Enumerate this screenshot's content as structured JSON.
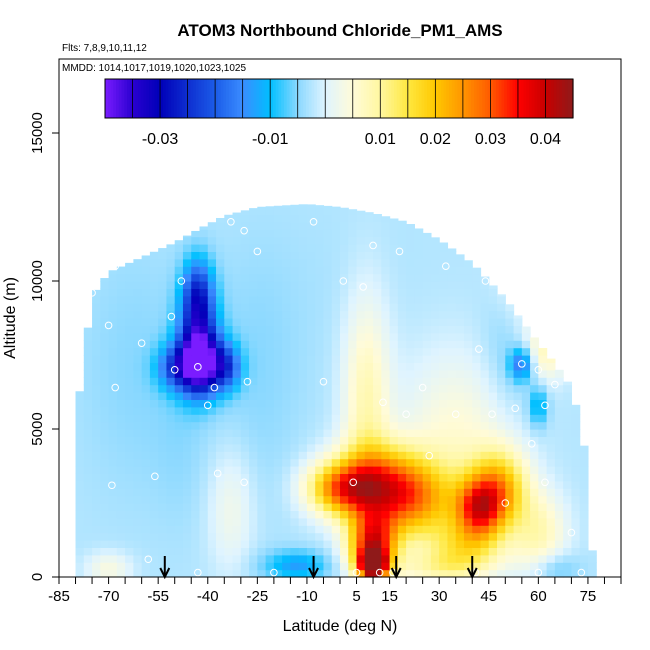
{
  "chart_data": {
    "type": "heatmap",
    "title": "ATOM3 Northbound Chloride_PM1_AMS",
    "flights_label": "Flts: 7,8,9,10,11,12",
    "dates_label": "MMDD: 1014,1017,1019,1020,1023,1025",
    "xlabel": "Latitude (deg N)",
    "ylabel": "Altitude (m)",
    "xlim": [
      -85,
      85
    ],
    "ylim": [
      0,
      17500
    ],
    "x_ticks": [
      -85,
      -70,
      -55,
      -40,
      -25,
      -10,
      5,
      15,
      30,
      45,
      60,
      75
    ],
    "x_minor_step": 5,
    "y_ticks": [
      0,
      5000,
      10000,
      15000
    ],
    "colorbar": {
      "range": [
        -0.04,
        0.045
      ],
      "tick_values": [
        -0.03,
        -0.01,
        0.01,
        0.02,
        0.03,
        0.04
      ],
      "tick_labels": [
        "-0.03",
        "-0.01",
        "0.01",
        "0.02",
        "0.03",
        "0.04"
      ],
      "stops": [
        {
          "v": -0.04,
          "color": "#7a1cff"
        },
        {
          "v": -0.035,
          "color": "#2a00d0"
        },
        {
          "v": -0.03,
          "color": "#0000b8"
        },
        {
          "v": -0.02,
          "color": "#1c5ce8"
        },
        {
          "v": -0.015,
          "color": "#3a8cff"
        },
        {
          "v": -0.01,
          "color": "#00bfff"
        },
        {
          "v": -0.005,
          "color": "#8ad8ff"
        },
        {
          "v": 0.0,
          "color": "#dff4ff"
        },
        {
          "v": 0.005,
          "color": "#fffbd8"
        },
        {
          "v": 0.01,
          "color": "#fff7a0"
        },
        {
          "v": 0.015,
          "color": "#ffe840"
        },
        {
          "v": 0.02,
          "color": "#ffc800"
        },
        {
          "v": 0.025,
          "color": "#ff9500"
        },
        {
          "v": 0.03,
          "color": "#ff5a00"
        },
        {
          "v": 0.035,
          "color": "#ff0000"
        },
        {
          "v": 0.04,
          "color": "#c80000"
        },
        {
          "v": 0.045,
          "color": "#8f1a1a"
        }
      ]
    },
    "arrows_latitude": [
      -53,
      -8,
      17,
      40
    ],
    "envelope": [
      {
        "lat": -80,
        "top": 5200
      },
      {
        "lat": -75,
        "top": 9500
      },
      {
        "lat": -70,
        "top": 10300
      },
      {
        "lat": -60,
        "top": 10800
      },
      {
        "lat": -50,
        "top": 11300
      },
      {
        "lat": -42,
        "top": 11800
      },
      {
        "lat": -35,
        "top": 12200
      },
      {
        "lat": -25,
        "top": 12500
      },
      {
        "lat": -10,
        "top": 12600
      },
      {
        "lat": 0,
        "top": 12500
      },
      {
        "lat": 10,
        "top": 12300
      },
      {
        "lat": 20,
        "top": 12000
      },
      {
        "lat": 30,
        "top": 11400
      },
      {
        "lat": 40,
        "top": 10600
      },
      {
        "lat": 50,
        "top": 9400
      },
      {
        "lat": 58,
        "top": 8200
      },
      {
        "lat": 65,
        "top": 7200
      },
      {
        "lat": 70,
        "top": 6400
      },
      {
        "lat": 73,
        "top": 5000
      },
      {
        "lat": 75,
        "top": 3500
      },
      {
        "lat": 76,
        "top": 1200
      },
      {
        "lat": 77,
        "top": 0
      }
    ],
    "features": [
      {
        "lat": -42,
        "alt": 7200,
        "value": -0.036,
        "slat": 5,
        "salt": 700
      },
      {
        "lat": -43,
        "alt": 8400,
        "value": -0.025,
        "slat": 4,
        "salt": 1200
      },
      {
        "lat": -43,
        "alt": 9700,
        "value": -0.015,
        "slat": 3,
        "salt": 800
      },
      {
        "lat": -50,
        "alt": 7100,
        "value": -0.015,
        "slat": 4,
        "salt": 500
      },
      {
        "lat": -34,
        "alt": 7100,
        "value": -0.015,
        "slat": 3,
        "salt": 500
      },
      {
        "lat": -48,
        "alt": 4500,
        "value": -0.004,
        "slat": 6,
        "salt": 2000
      },
      {
        "lat": -62,
        "alt": 7000,
        "value": -0.005,
        "slat": 12,
        "salt": 3000
      },
      {
        "lat": -25,
        "alt": 7000,
        "value": -0.005,
        "slat": 10,
        "salt": 3000
      },
      {
        "lat": 0,
        "alt": 10000,
        "value": -0.003,
        "slat": 15,
        "salt": 2000
      },
      {
        "lat": 55,
        "alt": 7200,
        "value": -0.018,
        "slat": 2.5,
        "salt": 400
      },
      {
        "lat": 52,
        "alt": 7800,
        "value": -0.007,
        "slat": 6,
        "salt": 1500
      },
      {
        "lat": 60,
        "alt": 5800,
        "value": -0.012,
        "slat": 2,
        "salt": 500
      },
      {
        "lat": 62,
        "alt": 7600,
        "value": 0.007,
        "slat": 5,
        "salt": 700
      },
      {
        "lat": 8,
        "alt": 6000,
        "value": 0.008,
        "slat": 5,
        "salt": 2500
      },
      {
        "lat": 35,
        "alt": 4800,
        "value": 0.005,
        "slat": 12,
        "salt": 2000
      },
      {
        "lat": 10,
        "alt": 400,
        "value": 0.042,
        "slat": 3,
        "salt": 350
      },
      {
        "lat": 10,
        "alt": 1100,
        "value": 0.032,
        "slat": 5,
        "salt": 700
      },
      {
        "lat": 12,
        "alt": 3200,
        "value": 0.023,
        "slat": 10,
        "salt": 900
      },
      {
        "lat": 0,
        "alt": 3000,
        "value": 0.02,
        "slat": 7,
        "salt": 600
      },
      {
        "lat": 22,
        "alt": 2500,
        "value": 0.017,
        "slat": 10,
        "salt": 900
      },
      {
        "lat": 42,
        "alt": 2300,
        "value": 0.025,
        "slat": 5,
        "salt": 700
      },
      {
        "lat": 48,
        "alt": 3000,
        "value": 0.02,
        "slat": 6,
        "salt": 900
      },
      {
        "lat": 38,
        "alt": 1000,
        "value": 0.011,
        "slat": 8,
        "salt": 600
      },
      {
        "lat": 30,
        "alt": 300,
        "value": 0.006,
        "slat": 10,
        "salt": 400
      },
      {
        "lat": 60,
        "alt": 1500,
        "value": 0.008,
        "slat": 6,
        "salt": 1000
      },
      {
        "lat": -12,
        "alt": 400,
        "value": -0.012,
        "slat": 6,
        "salt": 350
      },
      {
        "lat": -20,
        "alt": 400,
        "value": -0.005,
        "slat": 6,
        "salt": 400
      },
      {
        "lat": 65,
        "alt": 300,
        "value": -0.008,
        "slat": 5,
        "salt": 400
      },
      {
        "lat": -70,
        "alt": 300,
        "value": 0.004,
        "slat": 5,
        "salt": 400
      },
      {
        "lat": -33,
        "alt": 2300,
        "value": 0.003,
        "slat": 5,
        "salt": 1500
      },
      {
        "lat": 56,
        "alt": 10000,
        "value": 0.004,
        "slat": 6,
        "salt": 1500
      }
    ],
    "samples": [
      {
        "lat": -43,
        "alt": 7100
      },
      {
        "lat": -33,
        "alt": 12000
      },
      {
        "lat": -29,
        "alt": 11700
      },
      {
        "lat": -25,
        "alt": 11000
      },
      {
        "lat": -8,
        "alt": 12000
      },
      {
        "lat": 10,
        "alt": 11200
      },
      {
        "lat": 18,
        "alt": 11000
      },
      {
        "lat": 32,
        "alt": 10500
      },
      {
        "lat": 44,
        "alt": 10000
      },
      {
        "lat": -68,
        "alt": 10500
      },
      {
        "lat": -48,
        "alt": 10000
      },
      {
        "lat": -51,
        "alt": 8800
      },
      {
        "lat": -70,
        "alt": 8500
      },
      {
        "lat": -60,
        "alt": 7900
      },
      {
        "lat": -75,
        "alt": 9600
      },
      {
        "lat": -50,
        "alt": 7000
      },
      {
        "lat": -68,
        "alt": 6400
      },
      {
        "lat": -38,
        "alt": 6400
      },
      {
        "lat": -28,
        "alt": 6600
      },
      {
        "lat": -40,
        "alt": 5800
      },
      {
        "lat": -37,
        "alt": 3500
      },
      {
        "lat": -29,
        "alt": 3200
      },
      {
        "lat": -56,
        "alt": 3400
      },
      {
        "lat": -69,
        "alt": 3100
      },
      {
        "lat": -5,
        "alt": 6600
      },
      {
        "lat": 1,
        "alt": 10000
      },
      {
        "lat": 7,
        "alt": 9800
      },
      {
        "lat": 13,
        "alt": 5900
      },
      {
        "lat": 20,
        "alt": 5500
      },
      {
        "lat": 27,
        "alt": 4100
      },
      {
        "lat": 42,
        "alt": 7700
      },
      {
        "lat": 55,
        "alt": 7200
      },
      {
        "lat": 60,
        "alt": 7000
      },
      {
        "lat": 62,
        "alt": 5800
      },
      {
        "lat": 58,
        "alt": 4500
      },
      {
        "lat": 62,
        "alt": 3200
      },
      {
        "lat": 65,
        "alt": 6500
      },
      {
        "lat": 72,
        "alt": 6600
      },
      {
        "lat": 46,
        "alt": 5500
      },
      {
        "lat": 50,
        "alt": 2500
      },
      {
        "lat": 35,
        "alt": 5500
      },
      {
        "lat": 4,
        "alt": 3200
      },
      {
        "lat": 25,
        "alt": 6400
      },
      {
        "lat": -58,
        "alt": 600
      },
      {
        "lat": -43,
        "alt": 150
      },
      {
        "lat": -20,
        "alt": 150
      },
      {
        "lat": 5,
        "alt": 150
      },
      {
        "lat": 12,
        "alt": 150
      },
      {
        "lat": 16,
        "alt": 150
      },
      {
        "lat": 41,
        "alt": 150
      },
      {
        "lat": 60,
        "alt": 150
      },
      {
        "lat": 73,
        "alt": 150
      },
      {
        "lat": 70,
        "alt": 1500
      },
      {
        "lat": 53,
        "alt": 5700
      }
    ]
  }
}
